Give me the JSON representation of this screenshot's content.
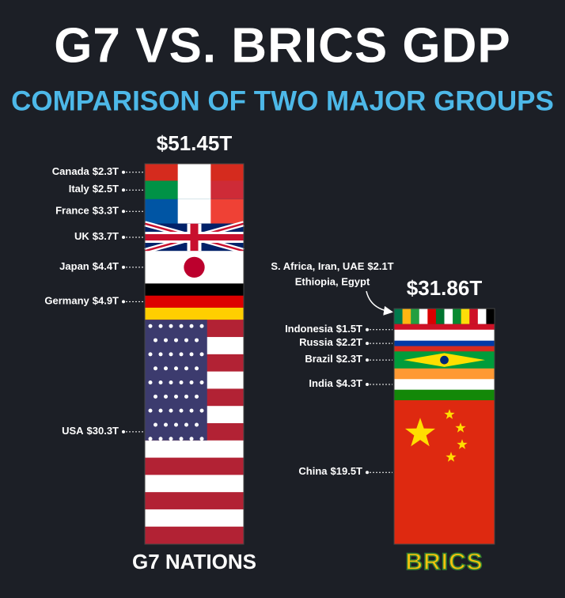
{
  "chart_data": {
    "type": "stacked-column",
    "title": "G7 VS. BRICS GDP",
    "subtitle": "COMPARISON OF TWO MAJOR GROUPS",
    "groups": [
      {
        "name": "G7 NATIONS",
        "total": 51.45,
        "total_label": "$51.45T",
        "segments": [
          {
            "name": [
              "Canada"
            ],
            "value": 2.3,
            "value_label": "$2.3T",
            "colors": [
              "#d52b1e",
              "#ffffff",
              "#d52b1e"
            ],
            "stripes": "v"
          },
          {
            "name": [
              "Italy"
            ],
            "value": 2.5,
            "value_label": "$2.5T",
            "colors": [
              "#009246",
              "#ffffff",
              "#ce2b37"
            ],
            "stripes": "v"
          },
          {
            "name": [
              "France"
            ],
            "value": 3.3,
            "value_label": "$3.3T",
            "colors": [
              "#0055a4",
              "#ffffff",
              "#ef4135"
            ],
            "stripes": "v"
          },
          {
            "name": [
              "UK"
            ],
            "value": 3.7,
            "value_label": "$3.7T",
            "colors": [
              "#012169",
              "#ffffff",
              "#c8102e"
            ],
            "stripes": "cross"
          },
          {
            "name": [
              "Japan"
            ],
            "value": 4.4,
            "value_label": "$4.4T",
            "colors": [
              "#ffffff",
              "#bc002d"
            ],
            "stripes": "disc"
          },
          {
            "name": [
              "Germany"
            ],
            "value": 4.9,
            "value_label": "$4.9T",
            "colors": [
              "#000000",
              "#dd0000",
              "#ffce00"
            ],
            "stripes": "h"
          },
          {
            "name": [
              "USA"
            ],
            "value": 30.3,
            "value_label": "$30.3T",
            "colors": [
              "#b22234",
              "#ffffff",
              "#b22234",
              "#ffffff",
              "#b22234",
              "#ffffff",
              "#b22234",
              "#ffffff",
              "#b22234",
              "#ffffff",
              "#b22234",
              "#ffffff",
              "#b22234",
              "#3c3b6e"
            ],
            "stripes": "canton"
          }
        ]
      },
      {
        "name": "BRICS",
        "total": 31.86,
        "total_label": "$31.86T",
        "segments": [
          {
            "name": [
              "S. Africa, Iran, UAE",
              "Ethiopia, Egypt"
            ],
            "value": 2.1,
            "value_label": "$2.1T",
            "colors": [
              "#007a4d",
              "#ffb612",
              "#239f40",
              "#ffffff",
              "#da0000",
              "#00732f",
              "#ffffff",
              "#078930",
              "#fcdd09",
              "#ce1126",
              "#ffffff",
              "#000000"
            ],
            "stripes": "v"
          },
          {
            "name": [
              "Indonesia"
            ],
            "value": 1.5,
            "value_label": "$1.5T",
            "colors": [
              "#ce1126",
              "#ffffff"
            ],
            "stripes": "h"
          },
          {
            "name": [
              "Russia"
            ],
            "value": 2.2,
            "value_label": "$2.2T",
            "colors": [
              "#ffffff",
              "#0039a6",
              "#d52b1e"
            ],
            "stripes": "h"
          },
          {
            "name": [
              "Brazil"
            ],
            "value": 2.3,
            "value_label": "$2.3T",
            "colors": [
              "#009c3b",
              "#ffdf00",
              "#002776"
            ],
            "stripes": "diamond"
          },
          {
            "name": [
              "India"
            ],
            "value": 4.3,
            "value_label": "$4.3T",
            "colors": [
              "#ff9933",
              "#ffffff",
              "#138808"
            ],
            "stripes": "h"
          },
          {
            "name": [
              "China"
            ],
            "value": 19.5,
            "value_label": "$19.5T",
            "colors": [
              "#de2910",
              "#ffde00"
            ],
            "stripes": "star"
          }
        ]
      }
    ]
  }
}
